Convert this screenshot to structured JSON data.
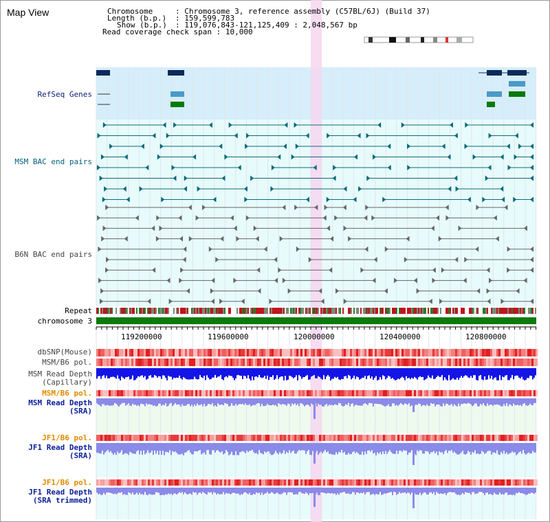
{
  "title": "Map View",
  "info": {
    "chromosome_label": "Chromosome",
    "chromosome_value": "Chromosome 3, reference assembly (C57BL/6J) (Build 37)",
    "length_label": "Length (b.p.)",
    "length_value": "159,599,783",
    "show_label": "Show (b.p.)",
    "show_value": "119,076,843-121,125,409 : 2,048,567 bp",
    "span_label": "Read coverage check span",
    "span_value": "10,000"
  },
  "tracks": {
    "refseq": "RefSeq Genes",
    "msm_bac": "MSM BAC end pairs",
    "b6n_bac": "B6N BAC end pairs",
    "repeat": "Repeat",
    "chromosome": "chromosome 3",
    "dbsnp": "dbSNP(Mouse)",
    "msm_b6_pol": "MSM/B6 pol.",
    "msm_depth_cap_1": "MSM Read Depth",
    "msm_depth_cap_2": "(Capillary)",
    "msm_b6_pol_2": "MSM/B6 pol.",
    "msm_depth_sra_1": "MSM Read Depth",
    "msm_depth_sra_2": "(SRA)",
    "jf1_b6_pol": "JF1/B6 pol.",
    "jf1_depth_sra_1": "JF1 Read Depth",
    "jf1_depth_sra_2": "(SRA)",
    "jf1_b6_pol_2": "JF1/B6 pol.",
    "jf1_depth_trim_1": "JF1 Read Depth",
    "jf1_depth_trim_2": "(SRA trimmed)"
  },
  "axis_ticks": [
    "119200000",
    "119600000",
    "120000000",
    "120400000",
    "120800000"
  ],
  "colors": {
    "refseq_bg": "#d6eefa",
    "bac_bg": "#e8fbfb",
    "highlight": "#f6d6f0",
    "chromosome": "#0a7a0a",
    "depth_capillary": "#1414e6",
    "depth_sra": "#8a8ae8",
    "gene_navy": "#0a2a5a",
    "gene_blue": "#4a9ac8",
    "gene_green": "#0a7a0a",
    "msm_pair": "#0a6a7a",
    "b6n_pair": "#666666"
  }
}
